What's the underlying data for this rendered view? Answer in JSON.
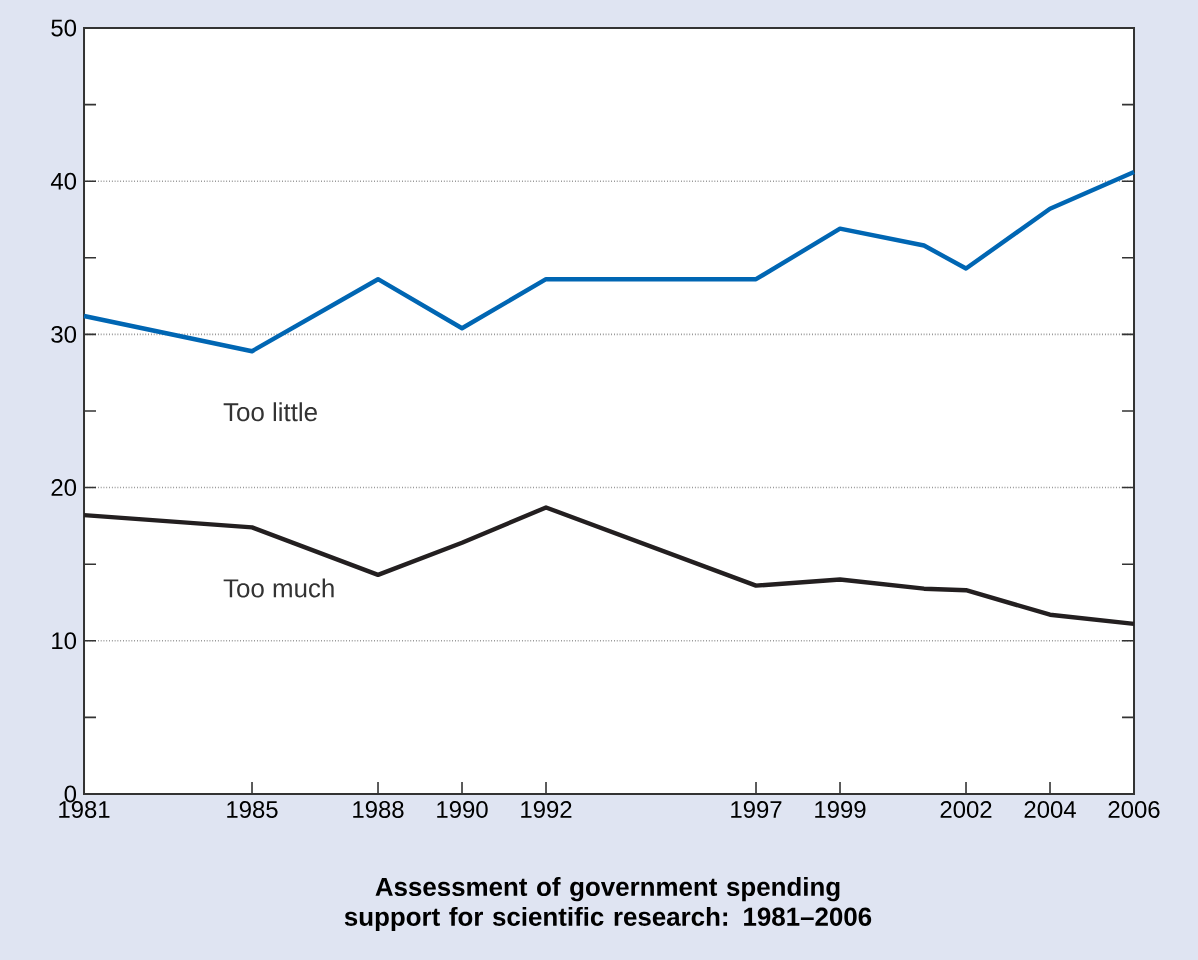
{
  "chart_data": {
    "type": "line",
    "title": "Assessment of government spending support for scientific research: 1981–2006",
    "x": [
      1981,
      1985,
      1988,
      1990,
      1992,
      1997,
      1999,
      2001,
      2002,
      2004,
      2006
    ],
    "series": [
      {
        "name": "Too little",
        "color": "#0066b3",
        "values": [
          31.2,
          28.9,
          33.6,
          30.4,
          33.6,
          33.6,
          36.9,
          35.8,
          34.3,
          38.2,
          40.6
        ]
      },
      {
        "name": "Too much",
        "color": "#231f20",
        "values": [
          18.2,
          17.4,
          14.3,
          16.4,
          18.7,
          13.6,
          14.0,
          13.4,
          13.3,
          11.7,
          11.1
        ]
      }
    ],
    "xlim": [
      1981,
      2006
    ],
    "xticks": [
      1981,
      1985,
      1988,
      1990,
      1992,
      1997,
      1999,
      2002,
      2004,
      2006
    ],
    "ylim": [
      0,
      50
    ],
    "yticks": [
      0,
      {
        "value": 5,
        "label": null
      },
      10,
      {
        "value": 15,
        "label": null
      },
      20,
      {
        "value": 25,
        "label": null
      },
      30,
      {
        "value": 35,
        "label": null
      },
      40,
      {
        "value": 45,
        "label": null
      },
      50
    ],
    "grid": "y",
    "legend": false,
    "marker": "none",
    "line_style": "solid"
  }
}
